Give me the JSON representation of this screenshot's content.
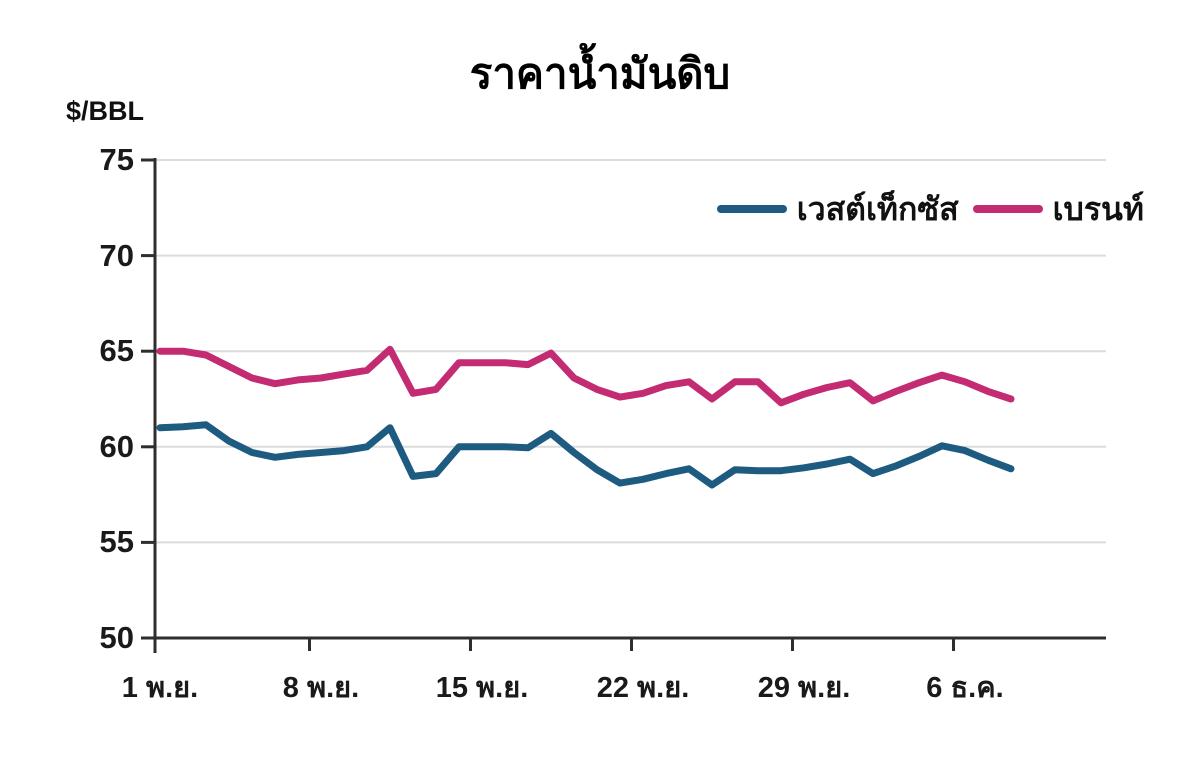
{
  "title": "ราคาน้ำมันดิบ",
  "y_axis_unit": "$/BBL",
  "colors": {
    "west_texas_line": "#1E5B80",
    "brent_line": "#C32B72",
    "gridline": "#dcdcdc",
    "axis": "#2e2e2e"
  },
  "chart_data": {
    "type": "line",
    "title": "ราคาน้ำมันดิบ",
    "ylabel": "$/BBL",
    "ylim": [
      50,
      75
    ],
    "y_ticks": [
      75,
      70,
      65,
      60,
      55,
      50
    ],
    "x_tick_labels": [
      "1 พ.ย.",
      "8 พ.ย.",
      "15 พ.ย.",
      "22 พ.ย.",
      "29 พ.ย.",
      "6 ธ.ค."
    ],
    "x_tick_indices": [
      0,
      7,
      14,
      21,
      28,
      35
    ],
    "x_cadence": "daily",
    "grid": true,
    "legend_position": "top-right-inside",
    "series": [
      {
        "name": "เวสต์เท็กซัส",
        "color": "#1E5B80",
        "values": [
          61.0,
          61.05,
          61.15,
          60.3,
          59.7,
          59.45,
          59.6,
          59.7,
          59.8,
          60.0,
          61.0,
          58.45,
          58.6,
          60.0,
          60.0,
          60.0,
          59.95,
          60.7,
          59.7,
          58.8,
          58.1,
          58.3,
          58.6,
          58.85,
          58.0,
          58.8,
          58.75,
          58.75,
          58.9,
          59.1,
          59.35,
          58.6,
          59.0,
          59.5,
          60.05,
          59.8,
          59.3,
          58.85
        ]
      },
      {
        "name": "เบรนท์",
        "color": "#C32B72",
        "values": [
          65.0,
          65.0,
          64.8,
          64.2,
          63.6,
          63.3,
          63.5,
          63.6,
          63.8,
          64.0,
          65.1,
          62.8,
          63.0,
          64.4,
          64.4,
          64.4,
          64.3,
          64.9,
          63.6,
          63.0,
          62.6,
          62.8,
          63.2,
          63.4,
          62.5,
          63.4,
          63.4,
          62.3,
          62.75,
          63.1,
          63.35,
          62.4,
          62.9,
          63.35,
          63.75,
          63.4,
          62.9,
          62.5
        ]
      }
    ]
  }
}
